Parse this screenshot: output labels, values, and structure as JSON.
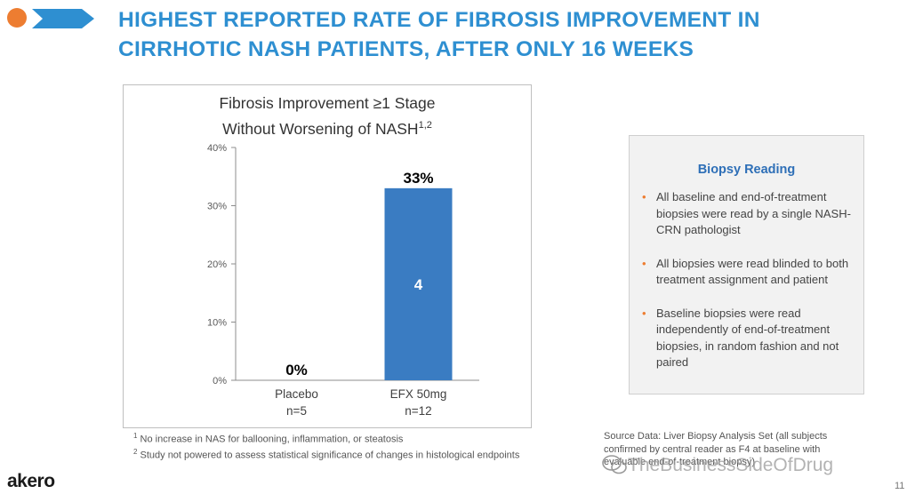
{
  "slide": {
    "title_line1": "HIGHEST REPORTED RATE OF FIBROSIS IMPROVEMENT IN",
    "title_line2": "CIRRHOTIC NASH PATIENTS, AFTER ONLY 16 WEEKS",
    "page_number": "11",
    "logo_text": "akero",
    "watermark_text": "TheBusinessSideOfDrug",
    "colors": {
      "accent_blue": "#2e8fd1",
      "bar_blue": "#3a7cc2",
      "bullet_orange": "#ed7d31"
    }
  },
  "chart_data": {
    "type": "bar",
    "title_line1": "Fibrosis Improvement ≥1 Stage",
    "title_line2": "Without Worsening of NASH",
    "title_sup": "1,2",
    "categories": [
      "Placebo",
      "EFX 50mg"
    ],
    "category_sublabels": [
      "n=5",
      "n=12"
    ],
    "values": [
      0,
      33
    ],
    "value_labels": [
      "0%",
      "33%"
    ],
    "bar_inner_labels": [
      "",
      "4"
    ],
    "yticks": [
      "0%",
      "10%",
      "20%",
      "30%",
      "40%"
    ],
    "ylim": [
      0,
      40
    ],
    "grid": false,
    "legend": "none"
  },
  "info_panel": {
    "heading": "Biopsy Reading",
    "bullets": [
      "All baseline and end-of-treatment biopsies were read by a single NASH-CRN pathologist",
      "All biopsies were read blinded to both treatment assignment and patient",
      "Baseline biopsies were read independently of end-of-treatment biopsies, in random fashion and not paired"
    ],
    "bullet_mark": "•"
  },
  "footnotes": [
    {
      "mark": "1",
      "text": "No increase in NAS for ballooning, inflammation, or steatosis"
    },
    {
      "mark": "2",
      "text": "Study not powered to assess statistical significance of changes in histological endpoints"
    }
  ],
  "source": {
    "line1": "Source Data: Liver Biopsy Analysis Set (all subjects",
    "line2": "confirmed by central reader as F4 at baseline with",
    "line3": "evaluable end-of-treatment biopsy)"
  }
}
